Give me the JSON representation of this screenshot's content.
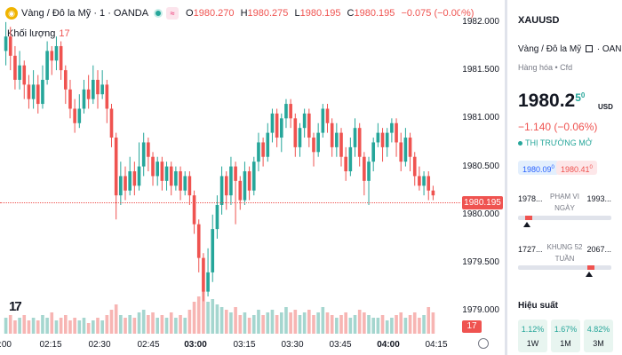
{
  "chart": {
    "symbol_name": "Vàng / Đô la Mỹ · 1 · OANDA",
    "symbol_icon": "gold-coin-icon",
    "ohlc": {
      "open_label": "O",
      "open": "1980.270",
      "high_label": "H",
      "high": "1980.275",
      "low_label": "L",
      "low": "1980.195",
      "close_label": "C",
      "close": "1980.195",
      "change": "−0.075 (−0.00%)"
    },
    "volume_label": "Khối lượng",
    "volume_value": "17",
    "current_price_label": "1980.195",
    "current_volume_label": "17",
    "price_ticks": [
      "1982.000",
      "1981.500",
      "1981.000",
      "1980.500",
      "1980.000",
      "1979.500",
      "1979.000"
    ],
    "time_ticks": [
      ":00",
      "02:15",
      "02:30",
      "02:45",
      "03:00",
      "03:15",
      "03:30",
      "03:45",
      "04:00",
      "04:15"
    ],
    "bold_time_ticks": [
      "03:00",
      "04:00"
    ],
    "colors": {
      "up": "#26a69a",
      "down": "#ef5350",
      "up_vol": "#a5d6cf",
      "down_vol": "#f7b5b3"
    }
  },
  "chart_data": {
    "type": "candlestick",
    "title": "Vàng / Đô la Mỹ · 1 · OANDA",
    "ylim": [
      1978.8,
      1982.1
    ],
    "candles": [
      {
        "o": 1981.7,
        "c": 1981.85,
        "h": 1982.0,
        "l": 1981.55,
        "v": 6
      },
      {
        "o": 1981.85,
        "c": 1981.65,
        "h": 1981.95,
        "l": 1981.5,
        "v": 7
      },
      {
        "o": 1981.65,
        "c": 1981.4,
        "h": 1981.75,
        "l": 1981.3,
        "v": 5
      },
      {
        "o": 1981.4,
        "c": 1981.55,
        "h": 1981.7,
        "l": 1981.3,
        "v": 6
      },
      {
        "o": 1981.55,
        "c": 1981.35,
        "h": 1981.6,
        "l": 1981.2,
        "v": 7
      },
      {
        "o": 1981.35,
        "c": 1981.2,
        "h": 1981.45,
        "l": 1981.1,
        "v": 5
      },
      {
        "o": 1981.2,
        "c": 1981.35,
        "h": 1981.5,
        "l": 1981.1,
        "v": 6
      },
      {
        "o": 1981.35,
        "c": 1981.15,
        "h": 1981.45,
        "l": 1981.05,
        "v": 5
      },
      {
        "o": 1981.15,
        "c": 1981.4,
        "h": 1981.55,
        "l": 1981.1,
        "v": 7
      },
      {
        "o": 1981.4,
        "c": 1981.7,
        "h": 1981.8,
        "l": 1981.35,
        "v": 6
      },
      {
        "o": 1981.7,
        "c": 1981.6,
        "h": 1981.75,
        "l": 1981.45,
        "v": 8
      },
      {
        "o": 1981.6,
        "c": 1981.75,
        "h": 1981.85,
        "l": 1981.5,
        "v": 5
      },
      {
        "o": 1981.75,
        "c": 1981.5,
        "h": 1981.8,
        "l": 1981.4,
        "v": 6
      },
      {
        "o": 1981.5,
        "c": 1981.3,
        "h": 1981.55,
        "l": 1981.15,
        "v": 7
      },
      {
        "o": 1981.3,
        "c": 1981.1,
        "h": 1981.4,
        "l": 1981.0,
        "v": 5
      },
      {
        "o": 1981.1,
        "c": 1980.95,
        "h": 1981.2,
        "l": 1980.85,
        "v": 6
      },
      {
        "o": 1980.95,
        "c": 1981.1,
        "h": 1981.25,
        "l": 1980.9,
        "v": 5
      },
      {
        "o": 1981.1,
        "c": 1981.3,
        "h": 1981.4,
        "l": 1981.05,
        "v": 6
      },
      {
        "o": 1981.3,
        "c": 1981.2,
        "h": 1981.45,
        "l": 1981.1,
        "v": 4
      },
      {
        "o": 1981.2,
        "c": 1981.4,
        "h": 1981.55,
        "l": 1981.15,
        "v": 5
      },
      {
        "o": 1981.4,
        "c": 1981.25,
        "h": 1981.5,
        "l": 1981.1,
        "v": 6
      },
      {
        "o": 1981.25,
        "c": 1981.35,
        "h": 1981.5,
        "l": 1981.2,
        "v": 5
      },
      {
        "o": 1981.35,
        "c": 1981.1,
        "h": 1981.4,
        "l": 1980.95,
        "v": 7
      },
      {
        "o": 1981.1,
        "c": 1980.8,
        "h": 1981.15,
        "l": 1980.7,
        "v": 9
      },
      {
        "o": 1980.8,
        "c": 1980.2,
        "h": 1980.85,
        "l": 1979.95,
        "v": 11
      },
      {
        "o": 1980.2,
        "c": 1980.4,
        "h": 1980.55,
        "l": 1980.1,
        "v": 7
      },
      {
        "o": 1980.4,
        "c": 1980.25,
        "h": 1980.5,
        "l": 1980.15,
        "v": 6
      },
      {
        "o": 1980.25,
        "c": 1980.45,
        "h": 1980.6,
        "l": 1980.2,
        "v": 7
      },
      {
        "o": 1980.45,
        "c": 1980.3,
        "h": 1980.55,
        "l": 1980.2,
        "v": 6
      },
      {
        "o": 1980.3,
        "c": 1980.5,
        "h": 1980.75,
        "l": 1980.25,
        "v": 8
      },
      {
        "o": 1980.5,
        "c": 1980.75,
        "h": 1980.85,
        "l": 1980.4,
        "v": 9
      },
      {
        "o": 1980.75,
        "c": 1980.6,
        "h": 1980.8,
        "l": 1980.45,
        "v": 7
      },
      {
        "o": 1980.6,
        "c": 1980.4,
        "h": 1980.65,
        "l": 1980.3,
        "v": 8
      },
      {
        "o": 1980.4,
        "c": 1980.55,
        "h": 1980.6,
        "l": 1980.3,
        "v": 6
      },
      {
        "o": 1980.55,
        "c": 1980.35,
        "h": 1980.6,
        "l": 1980.25,
        "v": 7
      },
      {
        "o": 1980.35,
        "c": 1980.5,
        "h": 1980.55,
        "l": 1980.25,
        "v": 6
      },
      {
        "o": 1980.5,
        "c": 1980.3,
        "h": 1980.55,
        "l": 1980.2,
        "v": 8
      },
      {
        "o": 1980.3,
        "c": 1980.45,
        "h": 1980.5,
        "l": 1980.25,
        "v": 6
      },
      {
        "o": 1980.45,
        "c": 1980.25,
        "h": 1980.5,
        "l": 1980.15,
        "v": 7
      },
      {
        "o": 1980.25,
        "c": 1980.4,
        "h": 1980.45,
        "l": 1980.2,
        "v": 6
      },
      {
        "o": 1980.4,
        "c": 1980.2,
        "h": 1980.45,
        "l": 1980.1,
        "v": 9
      },
      {
        "o": 1980.2,
        "c": 1979.9,
        "h": 1980.25,
        "l": 1979.8,
        "v": 12
      },
      {
        "o": 1979.9,
        "c": 1979.55,
        "h": 1979.95,
        "l": 1979.4,
        "v": 14
      },
      {
        "o": 1979.55,
        "c": 1979.2,
        "h": 1979.6,
        "l": 1979.1,
        "v": 16
      },
      {
        "o": 1979.2,
        "c": 1979.4,
        "h": 1979.65,
        "l": 1979.15,
        "v": 12
      },
      {
        "o": 1979.4,
        "c": 1979.85,
        "h": 1980.0,
        "l": 1979.3,
        "v": 13
      },
      {
        "o": 1979.85,
        "c": 1980.1,
        "h": 1980.2,
        "l": 1979.75,
        "v": 11
      },
      {
        "o": 1980.1,
        "c": 1980.4,
        "h": 1980.5,
        "l": 1980.0,
        "v": 10
      },
      {
        "o": 1980.4,
        "c": 1980.2,
        "h": 1980.45,
        "l": 1980.05,
        "v": 9
      },
      {
        "o": 1980.2,
        "c": 1980.5,
        "h": 1980.6,
        "l": 1980.1,
        "v": 8
      },
      {
        "o": 1980.5,
        "c": 1980.35,
        "h": 1980.55,
        "l": 1979.9,
        "v": 10
      },
      {
        "o": 1980.35,
        "c": 1980.15,
        "h": 1980.4,
        "l": 1980.05,
        "v": 7
      },
      {
        "o": 1980.15,
        "c": 1980.45,
        "h": 1980.55,
        "l": 1980.1,
        "v": 8
      },
      {
        "o": 1980.45,
        "c": 1980.25,
        "h": 1980.5,
        "l": 1980.15,
        "v": 6
      },
      {
        "o": 1980.25,
        "c": 1980.55,
        "h": 1980.6,
        "l": 1980.2,
        "v": 7
      },
      {
        "o": 1980.55,
        "c": 1980.75,
        "h": 1980.85,
        "l": 1980.45,
        "v": 9
      },
      {
        "o": 1980.75,
        "c": 1980.6,
        "h": 1980.8,
        "l": 1980.5,
        "v": 7
      },
      {
        "o": 1980.6,
        "c": 1980.85,
        "h": 1980.95,
        "l": 1980.55,
        "v": 8
      },
      {
        "o": 1980.85,
        "c": 1981.05,
        "h": 1981.1,
        "l": 1980.75,
        "v": 9
      },
      {
        "o": 1981.05,
        "c": 1980.8,
        "h": 1981.1,
        "l": 1980.7,
        "v": 7
      },
      {
        "o": 1980.8,
        "c": 1981.0,
        "h": 1981.05,
        "l": 1980.65,
        "v": 8
      },
      {
        "o": 1981.0,
        "c": 1981.15,
        "h": 1981.2,
        "l": 1980.9,
        "v": 10
      },
      {
        "o": 1981.15,
        "c": 1981.0,
        "h": 1981.2,
        "l": 1980.9,
        "v": 8
      },
      {
        "o": 1981.0,
        "c": 1980.7,
        "h": 1981.05,
        "l": 1980.6,
        "v": 9
      },
      {
        "o": 1980.7,
        "c": 1980.9,
        "h": 1980.95,
        "l": 1980.6,
        "v": 7
      },
      {
        "o": 1980.9,
        "c": 1981.05,
        "h": 1981.1,
        "l": 1980.8,
        "v": 8
      },
      {
        "o": 1981.05,
        "c": 1980.8,
        "h": 1981.1,
        "l": 1980.7,
        "v": 9
      },
      {
        "o": 1980.8,
        "c": 1980.65,
        "h": 1980.85,
        "l": 1980.5,
        "v": 7
      },
      {
        "o": 1980.65,
        "c": 1980.85,
        "h": 1980.95,
        "l": 1980.6,
        "v": 8
      },
      {
        "o": 1980.85,
        "c": 1981.1,
        "h": 1981.15,
        "l": 1980.8,
        "v": 10
      },
      {
        "o": 1981.1,
        "c": 1980.95,
        "h": 1981.15,
        "l": 1980.85,
        "v": 8
      },
      {
        "o": 1980.95,
        "c": 1980.7,
        "h": 1981.0,
        "l": 1980.6,
        "v": 7
      },
      {
        "o": 1980.7,
        "c": 1980.85,
        "h": 1980.95,
        "l": 1980.6,
        "v": 6
      },
      {
        "o": 1980.85,
        "c": 1980.6,
        "h": 1980.9,
        "l": 1980.5,
        "v": 7
      },
      {
        "o": 1980.6,
        "c": 1980.45,
        "h": 1980.7,
        "l": 1980.35,
        "v": 8
      },
      {
        "o": 1980.45,
        "c": 1980.7,
        "h": 1980.8,
        "l": 1980.4,
        "v": 6
      },
      {
        "o": 1980.7,
        "c": 1980.9,
        "h": 1981.0,
        "l": 1980.6,
        "v": 7
      },
      {
        "o": 1980.9,
        "c": 1980.6,
        "h": 1980.95,
        "l": 1980.5,
        "v": 9
      },
      {
        "o": 1980.6,
        "c": 1980.35,
        "h": 1980.65,
        "l": 1980.2,
        "v": 8
      },
      {
        "o": 1980.35,
        "c": 1980.55,
        "h": 1980.6,
        "l": 1980.1,
        "v": 7
      },
      {
        "o": 1980.55,
        "c": 1980.75,
        "h": 1980.8,
        "l": 1980.45,
        "v": 6
      },
      {
        "o": 1980.75,
        "c": 1980.85,
        "h": 1980.95,
        "l": 1980.7,
        "v": 6
      },
      {
        "o": 1980.85,
        "c": 1980.7,
        "h": 1980.9,
        "l": 1980.55,
        "v": 7
      },
      {
        "o": 1980.7,
        "c": 1980.85,
        "h": 1980.9,
        "l": 1980.6,
        "v": 5
      },
      {
        "o": 1980.85,
        "c": 1980.95,
        "h": 1981.0,
        "l": 1980.75,
        "v": 6
      },
      {
        "o": 1980.95,
        "c": 1980.75,
        "h": 1981.0,
        "l": 1980.6,
        "v": 7
      },
      {
        "o": 1980.75,
        "c": 1980.55,
        "h": 1980.85,
        "l": 1980.45,
        "v": 8
      },
      {
        "o": 1980.55,
        "c": 1980.8,
        "h": 1980.9,
        "l": 1980.5,
        "v": 6
      },
      {
        "o": 1980.8,
        "c": 1980.6,
        "h": 1980.85,
        "l": 1980.45,
        "v": 7
      },
      {
        "o": 1980.6,
        "c": 1980.4,
        "h": 1980.65,
        "l": 1980.3,
        "v": 8
      },
      {
        "o": 1980.4,
        "c": 1980.3,
        "h": 1980.5,
        "l": 1980.25,
        "v": 6
      },
      {
        "o": 1980.3,
        "c": 1980.4,
        "h": 1980.45,
        "l": 1980.2,
        "v": 7
      },
      {
        "o": 1980.4,
        "c": 1980.25,
        "h": 1980.45,
        "l": 1980.15,
        "v": 10
      },
      {
        "o": 1980.25,
        "c": 1980.2,
        "h": 1980.3,
        "l": 1980.15,
        "v": 8
      }
    ],
    "price_ticks": [
      1982.0,
      1981.5,
      1981.0,
      1980.5,
      1980.0,
      1979.5,
      1979.0
    ],
    "time_ticks": [
      ":00",
      "02:15",
      "02:30",
      "02:45",
      "03:00",
      "03:15",
      "03:30",
      "03:45",
      "04:00",
      "04:15"
    ],
    "last_price": 1980.195,
    "last_volume": 17
  },
  "panel": {
    "ticker": "XAUUSD",
    "name": "Vàng / Đô la Mỹ",
    "external_icon": "external-link-icon",
    "broker": "· OANDA",
    "type": "Hàng hóa • Cfd",
    "price_main": "1980.2",
    "price_sup": "5",
    "price_sup2": "0",
    "currency": "USD",
    "change": "−1.140 (−0.06%)",
    "status": "THỊ TRƯỜNG MỞ",
    "bid": "1980.09",
    "bid_sup": "0",
    "ask": "1980.41",
    "ask_sup": "0",
    "day_range": {
      "low": "1978...",
      "high": "1993...",
      "label1": "PHẠM VI",
      "label2": "NGÀY",
      "position_pct": 8
    },
    "week52_range": {
      "low": "1727...",
      "high": "2067...",
      "label1": "KHUNG 52",
      "label2": "TUẦN",
      "position_pct": 74
    },
    "performance_title": "Hiệu suất",
    "performance": [
      {
        "value": "1.12%",
        "label": "1W"
      },
      {
        "value": "1.67%",
        "label": "1M"
      },
      {
        "value": "4.82%",
        "label": "3M"
      }
    ]
  }
}
